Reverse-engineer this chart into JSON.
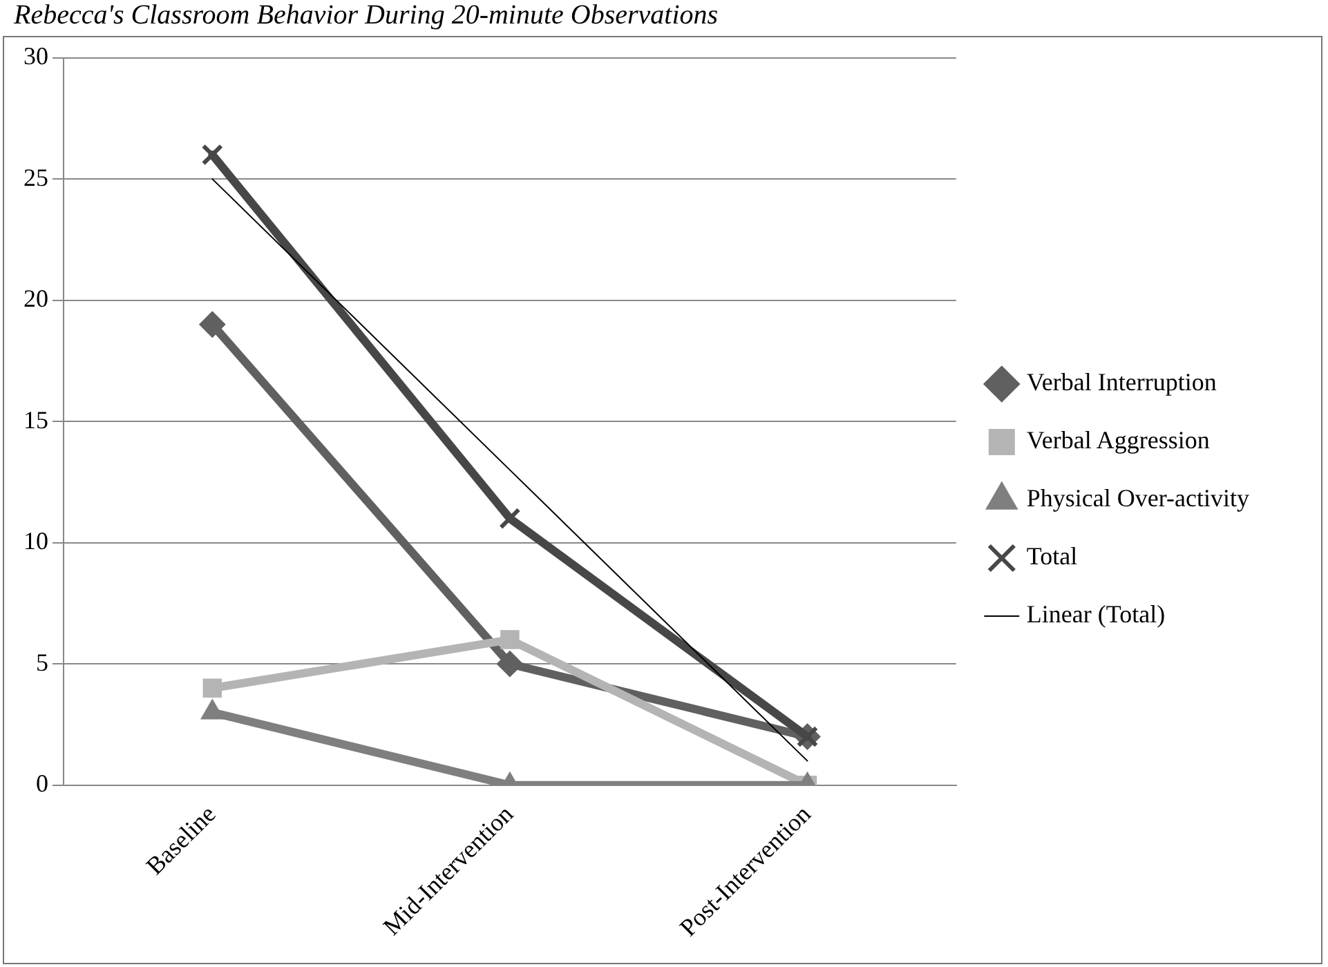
{
  "chart_data": {
    "type": "line",
    "title": "Rebecca's Classroom Behavior During 20-minute Observations",
    "categories": [
      "Baseline",
      "Mid-Intervention",
      "Post-Intervention"
    ],
    "series": [
      {
        "name": "Verbal Interruption",
        "color": "#606060",
        "values": [
          19,
          5,
          2
        ],
        "marker": "diamond"
      },
      {
        "name": "Verbal Aggression",
        "color": "#b4b4b4",
        "values": [
          4,
          6,
          0
        ],
        "marker": "square"
      },
      {
        "name": "Physical Over-activity",
        "color": "#7f7f7f",
        "values": [
          3,
          0,
          0
        ],
        "marker": "triangle"
      },
      {
        "name": "Total",
        "color": "#474747",
        "values": [
          26,
          11,
          2
        ],
        "marker": "cross"
      },
      {
        "name": "Linear (Total)",
        "color": "#000000",
        "values": [
          25,
          13,
          1
        ],
        "marker": "none"
      }
    ],
    "ylim": [
      0,
      30
    ],
    "yticks": [
      0,
      5,
      10,
      15,
      20,
      25,
      30
    ],
    "grid": "y",
    "legend": "right"
  }
}
